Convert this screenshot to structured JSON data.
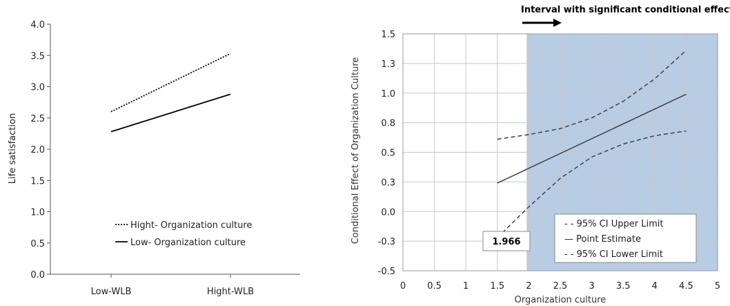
{
  "chart_data": [
    {
      "type": "line",
      "title": "",
      "xlabel": "",
      "ylabel": "Life satisfaction",
      "categories": [
        "Low-WLB",
        "Hight-WLB"
      ],
      "ylim": [
        0,
        4
      ],
      "yticks": [
        "0.0",
        "0.5",
        "1.0",
        "1.5",
        "2.0",
        "2.5",
        "3.0",
        "3.5",
        "4.0"
      ],
      "grid": false,
      "legend_position": "bottom-right",
      "series": [
        {
          "name": "Hight- Organization culture",
          "values": [
            2.6,
            3.53
          ],
          "style": "dotted",
          "color": "#000000"
        },
        {
          "name": "Low- Organization culture",
          "values": [
            2.28,
            2.88
          ],
          "style": "solid",
          "color": "#000000"
        }
      ]
    },
    {
      "type": "line",
      "title": "",
      "xlabel": "Organization culture",
      "ylabel": "Conditional Effect of Organization Culture",
      "xlim": [
        0,
        5
      ],
      "ylim": [
        -0.5,
        1.5
      ],
      "xticks": [
        "0",
        "0.5",
        "1",
        "1.5",
        "2",
        "2.5",
        "3",
        "3.5",
        "4",
        "4.5",
        "5"
      ],
      "yticks": [
        "-0.5",
        "-0.3",
        "0.0",
        "0.3",
        "0.5",
        "0.8",
        "1.0",
        "1.3",
        "1.5"
      ],
      "grid": true,
      "legend_position": "bottom-right",
      "shaded_region": {
        "from": 1.966,
        "to": 5,
        "color": "#b8cce4"
      },
      "annotation_value": "1.966",
      "arrow_label": "Interval with significant conditional effects",
      "series": [
        {
          "name": "95% CI Upper Limit",
          "legend_text": "- - 95% CI Upper Limit",
          "style": "dashed",
          "x": [
            1.5,
            2.0,
            2.5,
            3.0,
            3.5,
            4.0,
            4.5
          ],
          "y": [
            0.61,
            0.65,
            0.7,
            0.79,
            0.93,
            1.12,
            1.36
          ]
        },
        {
          "name": "Point Estimate",
          "legend_text": "— Point Estimate",
          "style": "solid",
          "x": [
            1.5,
            4.5
          ],
          "y": [
            0.24,
            0.99
          ]
        },
        {
          "name": "95% CI Lower Limit",
          "legend_text": "- - 95% CI Lower Limit",
          "style": "dashed",
          "x": [
            1.5,
            2.0,
            2.5,
            3.0,
            3.5,
            4.0,
            4.5
          ],
          "y": [
            -0.22,
            0.04,
            0.28,
            0.46,
            0.57,
            0.64,
            0.68
          ]
        }
      ],
      "colors": {
        "line": "#404040",
        "grid": "#c8c8c8",
        "shade": "#b8cce4"
      }
    }
  ]
}
